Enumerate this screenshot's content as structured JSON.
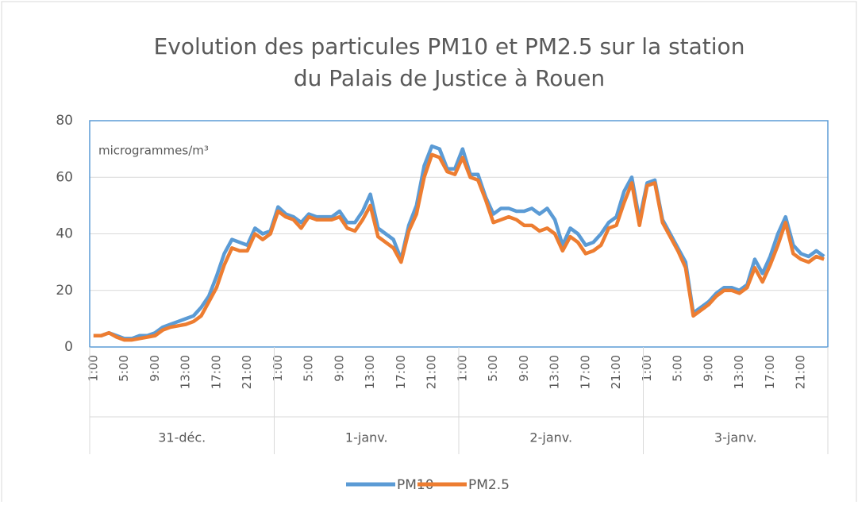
{
  "chart_data": {
    "type": "line",
    "title": [
      "Evolution des particules PM10 et PM2.5 sur la station",
      "du Palais de Justice à Rouen"
    ],
    "annotation": "microgrammes/m³",
    "categories": [
      "1:00",
      null,
      null,
      null,
      "5:00",
      null,
      null,
      null,
      "9:00",
      null,
      null,
      null,
      "13:00",
      null,
      null,
      null,
      "17:00",
      null,
      null,
      null,
      "21:00",
      null,
      null,
      null,
      "1:00",
      null,
      null,
      null,
      "5:00",
      null,
      null,
      null,
      "9:00",
      null,
      null,
      null,
      "13:00",
      null,
      null,
      null,
      "17:00",
      null,
      null,
      null,
      "21:00",
      null,
      null,
      null,
      "1:00",
      null,
      null,
      null,
      "5:00",
      null,
      null,
      null,
      "9:00",
      null,
      null,
      null,
      "13:00",
      null,
      null,
      null,
      "17:00",
      null,
      null,
      null,
      "21:00",
      null,
      null,
      null,
      "1:00",
      null,
      null,
      null,
      "5:00",
      null,
      null,
      null,
      "9:00",
      null,
      null,
      null,
      "13:00",
      null,
      null,
      null,
      "17:00",
      null,
      null,
      null,
      "21:00",
      null,
      null,
      null
    ],
    "groups": [
      "31-déc.",
      "1-janv.",
      "2-janv.",
      "3-janv."
    ],
    "series": [
      {
        "name": "PM10",
        "color": "#5b9bd5",
        "values": [
          4,
          4,
          5,
          4,
          3,
          3,
          4,
          4,
          5,
          7,
          8,
          9,
          10,
          11,
          14,
          18,
          25,
          33,
          38,
          37,
          36,
          42,
          40,
          41,
          49.5,
          47,
          46,
          44,
          47,
          46,
          46,
          46,
          48,
          44,
          44,
          48,
          54,
          42,
          40,
          38,
          31,
          43,
          50,
          64,
          71,
          70,
          63,
          63,
          70,
          61,
          61,
          53,
          47,
          49,
          49,
          48,
          48,
          49,
          47,
          49,
          45,
          36,
          42,
          40,
          36,
          37,
          40,
          44,
          46,
          55,
          60,
          45,
          58,
          59,
          45,
          40,
          35,
          30,
          12,
          14,
          16,
          19,
          21,
          21,
          20,
          22,
          31,
          26,
          32,
          40,
          46,
          36,
          33,
          32,
          34,
          32
        ]
      },
      {
        "name": "PM2.5",
        "color": "#ed7d31",
        "values": [
          4,
          4,
          5,
          3.5,
          2.5,
          2.5,
          3,
          3.5,
          4,
          6,
          7,
          7.5,
          8,
          9,
          11,
          16,
          21,
          29,
          35,
          34,
          34,
          40,
          38,
          40,
          48,
          46,
          45,
          42,
          46,
          45,
          45,
          45,
          46,
          42,
          41,
          45,
          50,
          39,
          37,
          35,
          30,
          41,
          47,
          60,
          68,
          67,
          62,
          61,
          67,
          60,
          59,
          52,
          44,
          45,
          46,
          45,
          43,
          43,
          41,
          42,
          40,
          34,
          39,
          37,
          33,
          34,
          36,
          42,
          43,
          51,
          58,
          43,
          57,
          58,
          44,
          39,
          34,
          28,
          11,
          13,
          15,
          18,
          20,
          20,
          19,
          21,
          28,
          23,
          29,
          36,
          44,
          33,
          31,
          30,
          32,
          31
        ]
      }
    ],
    "ylim": [
      0,
      80
    ],
    "yticks": [
      0,
      20,
      40,
      60,
      80
    ],
    "grid": true,
    "legend": "bottom"
  }
}
